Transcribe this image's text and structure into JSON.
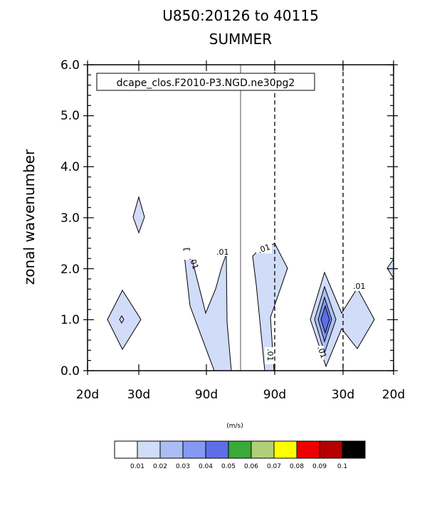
{
  "chart_data": {
    "type": "contour",
    "title_line1": "U850:20126 to 40115",
    "title_line2": "SUMMER",
    "ylabel": "zonal wavenumber",
    "legend_label": "dcape_clos.F2010-P3.NGD.ne30pg2",
    "units_label": "(m/s)",
    "y_ticks": [
      "0.0",
      "1.0",
      "2.0",
      "3.0",
      "4.0",
      "5.0",
      "6.0"
    ],
    "x_ticks": [
      "20d",
      "30d",
      "90d",
      "90d",
      "30d",
      "20d"
    ],
    "ylim": [
      0,
      6
    ],
    "contour_labels": [
      ".01",
      ".01",
      ".01",
      ".01",
      ".01",
      ".01"
    ],
    "colorbar": {
      "levels": [
        "0.01",
        "0.02",
        "0.03",
        "0.04",
        "0.05",
        "0.06",
        "0.07",
        "0.08",
        "0.09",
        "0.1"
      ],
      "colors": [
        "#ffffff",
        "#d0dcf8",
        "#aabdf5",
        "#8499f0",
        "#5c6ee8",
        "#3aaa3a",
        "#b0cf78",
        "#ffff00",
        "#ee0000",
        "#b40000",
        "#000000"
      ]
    },
    "fill_colors": {
      "level1": "#d0dcf8",
      "level2": "#aabdf5",
      "level3": "#8499f0",
      "level4": "#5c6ee8"
    }
  }
}
